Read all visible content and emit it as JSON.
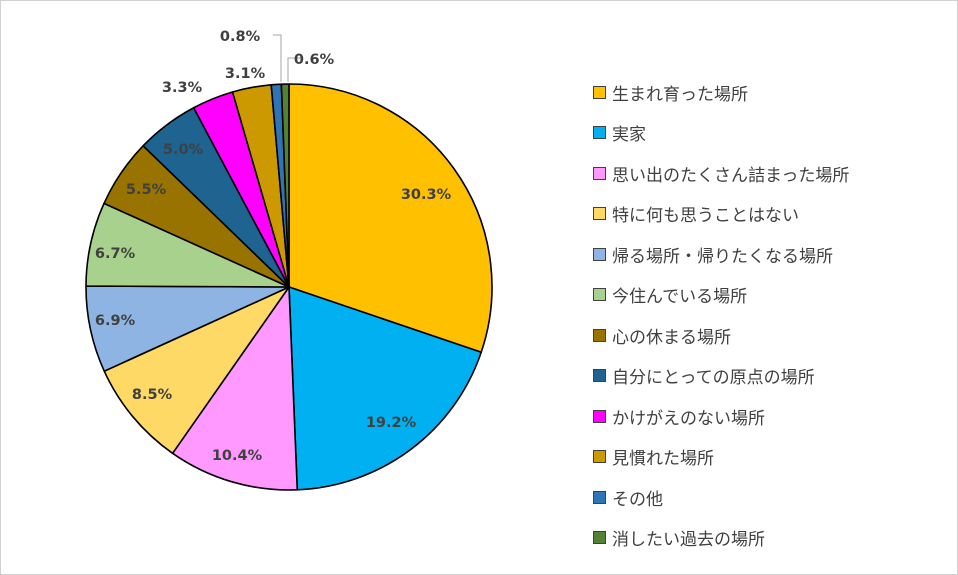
{
  "chart_data": {
    "type": "pie",
    "categories": [
      "生まれ育った場所",
      "実家",
      "思い出のたくさん詰まった場所",
      "特に何も思うことはない",
      "帰る場所・帰りたくなる場所",
      "今住んでいる場所",
      "心の休まる場所",
      "自分にとっての原点の場所",
      "かけがえのない場所",
      "見慣れた場所",
      "その他",
      "消したい過去の場所"
    ],
    "values": [
      30.3,
      19.2,
      10.4,
      8.5,
      6.9,
      6.7,
      5.5,
      5.0,
      3.3,
      3.1,
      0.8,
      0.6
    ],
    "data_labels": [
      "30.3%",
      "19.2%",
      "10.4%",
      "8.5%",
      "6.9%",
      "6.7%",
      "5.5%",
      "5.0%",
      "3.3%",
      "3.1%",
      "0.8%",
      "0.6%"
    ],
    "colors": [
      "#FFC000",
      "#00B0F0",
      "#FF99FF",
      "#FFD966",
      "#8DB4E2",
      "#A9D18E",
      "#997300",
      "#1F6391",
      "#FF00FF",
      "#CC9900",
      "#2E75B6",
      "#548235"
    ],
    "legend_position": "right",
    "start_angle": "12 o'clock, clockwise"
  }
}
